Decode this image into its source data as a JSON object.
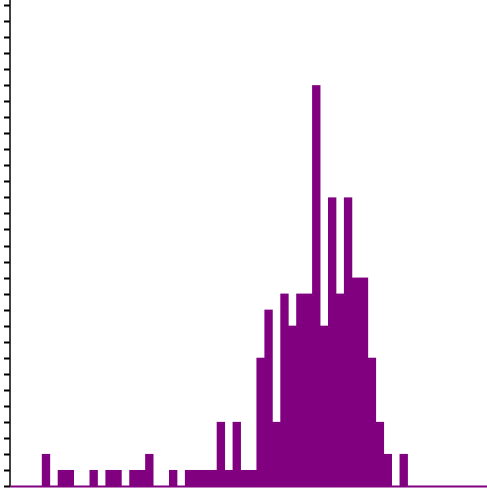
{
  "chart_data": {
    "type": "bar",
    "title": "",
    "xlabel": "",
    "ylabel": "",
    "grid": false,
    "legend": "none",
    "bar_color": "#800080",
    "axis_color": "#000000",
    "x_range": [
      0,
      60
    ],
    "ylim": [
      0,
      30
    ],
    "y_tick_step": 1,
    "bins": [
      0,
      1,
      2,
      3,
      4,
      5,
      6,
      7,
      8,
      9,
      10,
      11,
      12,
      13,
      14,
      15,
      16,
      17,
      18,
      19,
      20,
      21,
      22,
      23,
      24,
      25,
      26,
      27,
      28,
      29,
      30,
      31,
      32,
      33,
      34,
      35,
      36,
      37,
      38,
      39,
      40,
      41,
      42,
      43,
      44,
      45,
      46,
      47,
      48,
      49,
      50,
      51,
      52,
      53,
      54,
      55,
      56,
      57,
      58,
      59
    ],
    "values": [
      0,
      0,
      0,
      0,
      2,
      0,
      1,
      1,
      0,
      0,
      1,
      0,
      1,
      1,
      0,
      1,
      1,
      2,
      0,
      0,
      1,
      0,
      1,
      1,
      1,
      1,
      4,
      1,
      4,
      1,
      1,
      8,
      11,
      4,
      12,
      10,
      12,
      12,
      25,
      10,
      18,
      12,
      18,
      13,
      13,
      8,
      4,
      2,
      0,
      2,
      0,
      0,
      0,
      0,
      0,
      0,
      0,
      0,
      0,
      0
    ]
  }
}
